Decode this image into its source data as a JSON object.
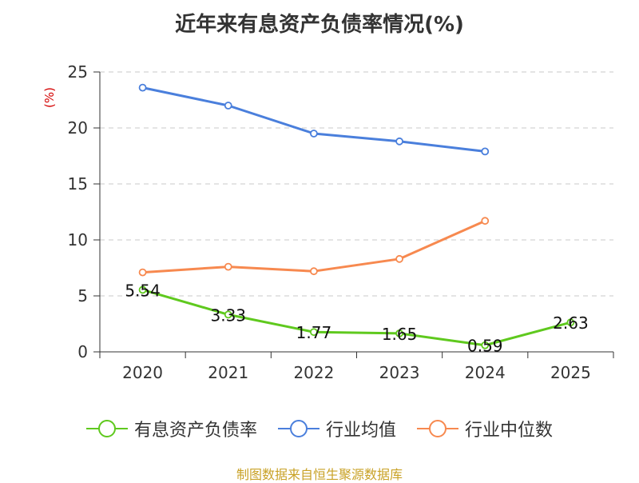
{
  "chart_data": {
    "type": "line",
    "title": "近年来有息资产负债率情况(%)",
    "ylabel": "(%)",
    "categories": [
      "2020",
      "2021",
      "2022",
      "2023",
      "2024",
      "2025"
    ],
    "ylim": [
      0,
      25
    ],
    "yticks": [
      0,
      5,
      10,
      15,
      20,
      25
    ],
    "grid": true,
    "legend_position": "bottom",
    "series": [
      {
        "name": "有息资产负债率",
        "color": "#5fc91e",
        "values": [
          5.54,
          3.33,
          1.77,
          1.65,
          0.59,
          2.63
        ],
        "labels": [
          "5.54",
          "3.33",
          "1.77",
          "1.65",
          "0.59",
          "2.63"
        ]
      },
      {
        "name": "行业均值",
        "color": "#4a7fdc",
        "values": [
          23.6,
          22.0,
          19.5,
          18.8,
          17.9,
          null
        ]
      },
      {
        "name": "行业中位数",
        "color": "#f7894f",
        "values": [
          7.1,
          7.6,
          7.2,
          8.3,
          11.7,
          null
        ]
      }
    ]
  },
  "source": "制图数据来自恒生聚源数据库"
}
